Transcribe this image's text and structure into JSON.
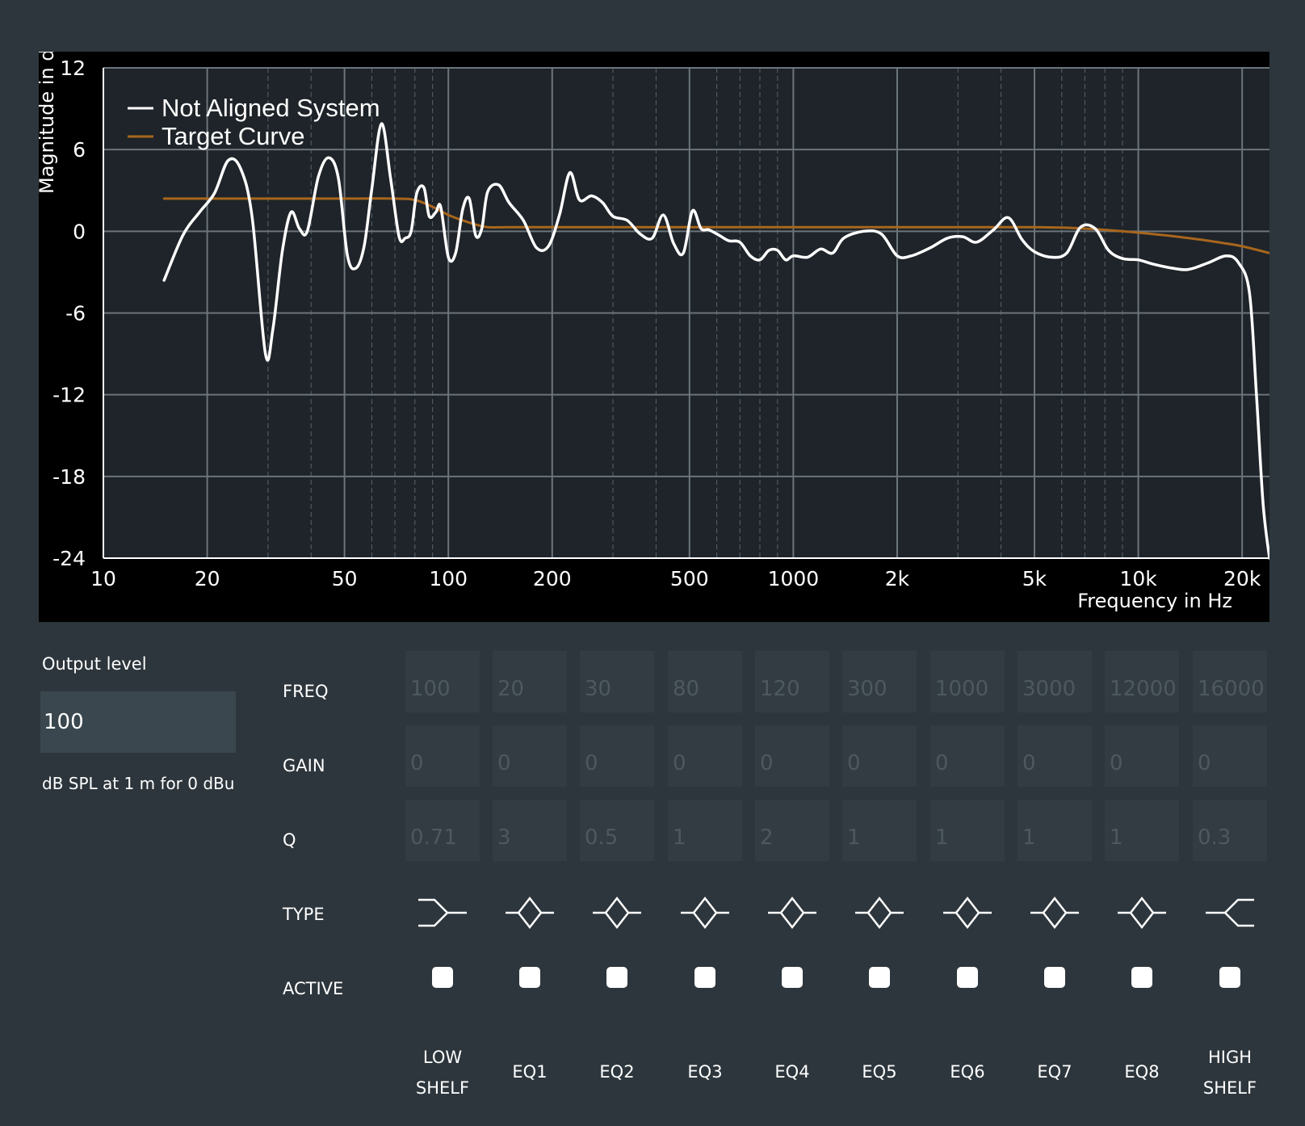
{
  "chart": {
    "y_axis_label": "Magnitude in d",
    "x_axis_label": "Frequency in Hz",
    "y_ticks": [
      "12",
      "6",
      "0",
      "-6",
      "-12",
      "-18",
      "-24"
    ],
    "x_ticks": [
      "10",
      "20",
      "50",
      "100",
      "200",
      "500",
      "1000",
      "2k",
      "5k",
      "10k",
      "20k"
    ],
    "legend": [
      "Not Aligned System",
      "Target Curve"
    ]
  },
  "chart_data": {
    "type": "line",
    "title": "",
    "xlabel": "Frequency in Hz",
    "ylabel": "Magnitude in d",
    "x_scale": "log",
    "xlim": [
      10,
      24000
    ],
    "ylim": [
      -24,
      12
    ],
    "grid": true,
    "legend_position": "top-left",
    "x_tick_values": [
      10,
      20,
      50,
      100,
      200,
      500,
      1000,
      2000,
      5000,
      10000,
      20000
    ],
    "y_tick_values": [
      12,
      6,
      0,
      -6,
      -12,
      -18,
      -24
    ],
    "series": [
      {
        "name": "Not Aligned System",
        "color": "#ffffff",
        "x": [
          15,
          17,
          19,
          21,
          23,
          25,
          27,
          29.5,
          31,
          33,
          35,
          37,
          39,
          42,
          45,
          48,
          51,
          54,
          57,
          60,
          64,
          68,
          72,
          75,
          78,
          81,
          85,
          88,
          92,
          95,
          100,
          105,
          110,
          115,
          120,
          125,
          130,
          140,
          150,
          165,
          180,
          195,
          210,
          225,
          240,
          260,
          280,
          300,
          330,
          360,
          390,
          420,
          450,
          480,
          510,
          540,
          570,
          610,
          650,
          700,
          750,
          800,
          850,
          900,
          950,
          1000,
          1100,
          1200,
          1300,
          1400,
          1600,
          1800,
          2000,
          2200,
          2500,
          2800,
          3100,
          3400,
          3800,
          4200,
          4600,
          5000,
          5600,
          6200,
          6800,
          7500,
          8200,
          9000,
          10000,
          11000,
          12500,
          14000,
          16000,
          18000,
          19500,
          21000,
          22000,
          23000,
          24000
        ],
        "y": [
          -3.6,
          -0.3,
          1.4,
          2.8,
          5.2,
          4.6,
          1,
          -9,
          -7.2,
          -1.5,
          1.4,
          0.2,
          0,
          4,
          5.4,
          3.9,
          -1.8,
          -2.7,
          -1.1,
          3.1,
          7.9,
          3.9,
          -0.4,
          -0.5,
          0,
          2.8,
          3.2,
          1.1,
          1.4,
          1.8,
          -1.9,
          -1.6,
          1.6,
          2.4,
          -0.3,
          0.2,
          2.9,
          3.4,
          2.1,
          0.8,
          -1.2,
          -1.1,
          1.2,
          4.3,
          2.3,
          2.6,
          2.1,
          1.1,
          0.8,
          -0.2,
          -0.5,
          1.2,
          -0.9,
          -1.6,
          1.5,
          0.2,
          0.1,
          -0.3,
          -0.7,
          -0.8,
          -1.8,
          -2.1,
          -1.4,
          -1.4,
          -2.1,
          -1.8,
          -1.9,
          -1.3,
          -1.6,
          -0.5,
          0,
          -0.2,
          -1.8,
          -1.8,
          -1.2,
          -0.5,
          -0.4,
          -0.8,
          0.1,
          1,
          -0.6,
          -1.5,
          -1.9,
          -1.6,
          0.3,
          0.2,
          -1.4,
          -2,
          -2.1,
          -2.4,
          -2.7,
          -2.8,
          -2.3,
          -1.8,
          -2.3,
          -4.5,
          -12,
          -20,
          -24
        ]
      },
      {
        "name": "Target Curve",
        "color": "#a8661d",
        "x": [
          15,
          20,
          50,
          70,
          80,
          90,
          100,
          110,
          120,
          130,
          150,
          200,
          500,
          1000,
          2000,
          5000,
          7000,
          9000,
          12000,
          15000,
          18000,
          20000,
          24000
        ],
        "y": [
          2.4,
          2.4,
          2.4,
          2.4,
          2.3,
          1.8,
          1.2,
          0.8,
          0.5,
          0.3,
          0.3,
          0.3,
          0.3,
          0.3,
          0.3,
          0.3,
          0.2,
          0,
          -0.3,
          -0.6,
          -0.9,
          -1.1,
          -1.6
        ]
      }
    ]
  },
  "output": {
    "label": "Output level",
    "value": "100",
    "unit": "dB SPL at 1 m for 0 dBu"
  },
  "rows": {
    "freq": "FREQ",
    "gain": "GAIN",
    "q": "Q",
    "type": "TYPE",
    "active": "ACTIVE"
  },
  "bands": [
    {
      "label_line1": "LOW",
      "label_line2": "SHELF",
      "freq": "100",
      "gain": "0",
      "q": "0.71",
      "type": "low-shelf",
      "active": false
    },
    {
      "label_line1": "EQ1",
      "label_line2": "",
      "freq": "20",
      "gain": "0",
      "q": "3",
      "type": "peak",
      "active": false
    },
    {
      "label_line1": "EQ2",
      "label_line2": "",
      "freq": "30",
      "gain": "0",
      "q": "0.5",
      "type": "peak",
      "active": false
    },
    {
      "label_line1": "EQ3",
      "label_line2": "",
      "freq": "80",
      "gain": "0",
      "q": "1",
      "type": "peak",
      "active": false
    },
    {
      "label_line1": "EQ4",
      "label_line2": "",
      "freq": "120",
      "gain": "0",
      "q": "2",
      "type": "peak",
      "active": false
    },
    {
      "label_line1": "EQ5",
      "label_line2": "",
      "freq": "300",
      "gain": "0",
      "q": "1",
      "type": "peak",
      "active": false
    },
    {
      "label_line1": "EQ6",
      "label_line2": "",
      "freq": "1000",
      "gain": "0",
      "q": "1",
      "type": "peak",
      "active": false
    },
    {
      "label_line1": "EQ7",
      "label_line2": "",
      "freq": "3000",
      "gain": "0",
      "q": "1",
      "type": "peak",
      "active": false
    },
    {
      "label_line1": "EQ8",
      "label_line2": "",
      "freq": "12000",
      "gain": "0",
      "q": "1",
      "type": "peak",
      "active": false
    },
    {
      "label_line1": "HIGH",
      "label_line2": "SHELF",
      "freq": "16000",
      "gain": "0",
      "q": "0.3",
      "type": "high-shelf",
      "active": false
    }
  ]
}
